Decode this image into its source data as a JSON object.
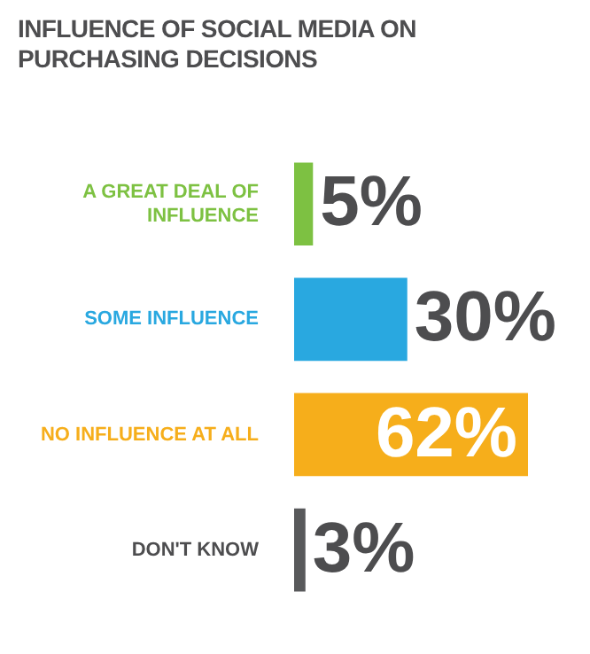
{
  "chart_data": {
    "type": "bar",
    "orientation": "horizontal",
    "title": "INFLUENCE OF SOCIAL MEDIA ON PURCHASING DECISIONS",
    "categories": [
      "A GREAT DEAL OF INFLUENCE",
      "SOME INFLUENCE",
      "NO INFLUENCE AT ALL",
      "DON'T KNOW"
    ],
    "values": [
      5,
      30,
      62,
      3
    ],
    "colors": [
      "#7dc142",
      "#29a8e0",
      "#f6ae1b",
      "#58595b"
    ],
    "value_labels": [
      "5%",
      "30%",
      "62%",
      "3%"
    ]
  }
}
